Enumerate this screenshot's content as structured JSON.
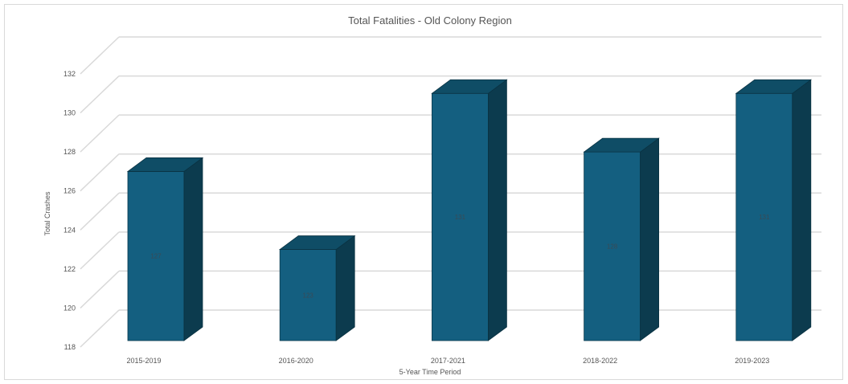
{
  "chart_data": {
    "type": "bar",
    "title": "Total Fatalities - Old Colony Region",
    "xlabel": "5-Year Time Period",
    "ylabel": "Total Crashes",
    "categories": [
      "2015-2019",
      "2016-2020",
      "2017-2021",
      "2018-2022",
      "2019-2023"
    ],
    "values": [
      127,
      123,
      131,
      128,
      131
    ],
    "data_labels": [
      "127",
      "123",
      "131",
      "128",
      "131"
    ],
    "ylim": [
      118,
      132
    ],
    "yticks": [
      118,
      120,
      122,
      124,
      126,
      128,
      130,
      132
    ],
    "three_d": true,
    "grid": true,
    "legend": "none",
    "colors": {
      "bar_front": "#145f80",
      "bar_side": "#0c3b4e",
      "bar_top": "#0f4d66",
      "grid": "#d9d9d9"
    }
  }
}
